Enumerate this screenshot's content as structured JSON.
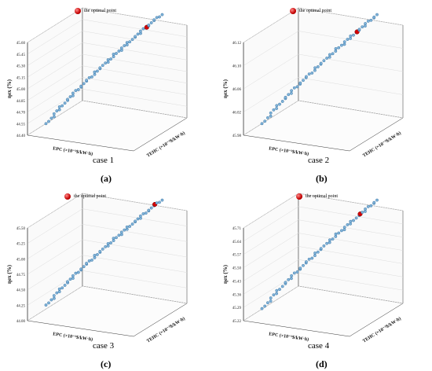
{
  "legend_label": "the optimal point",
  "colors": {
    "point": "#7fb3d9",
    "point_edge": "#2f6a9a",
    "optimal": "#d40000",
    "grid": "#dddddd",
    "axis": "#333333"
  },
  "chart_data": [
    {
      "type": "scatter",
      "subfigure": "(a)",
      "case_label": "case 1",
      "zlabel": "ηex (%)",
      "xlabel": "EPC (×10⁻³$/kW·h)",
      "ylabel": "TEHC (×10⁻³$/kW·h)",
      "z_ticks": [
        "44.40",
        "44.55",
        "44.70",
        "44.85",
        "45.00",
        "45.15",
        "45.30",
        "45.45",
        "45.60"
      ],
      "zlim": [
        44.4,
        45.6
      ],
      "z_start": 44.44,
      "optimal_z": 45.45,
      "n_points": 60
    },
    {
      "type": "scatter",
      "subfigure": "(b)",
      "case_label": "case 2",
      "zlabel": "ηex (%)",
      "xlabel": "EPC (×10⁻³$/kW·h)",
      "ylabel": "TEHC (×10⁻³$/kW·h)",
      "z_ticks": [
        "45.98",
        "46.02",
        "46.06",
        "46.10",
        "46.12"
      ],
      "zlim": [
        45.97,
        46.12
      ],
      "z_start": 45.975,
      "optimal_z": 46.095,
      "n_points": 55
    },
    {
      "type": "scatter",
      "subfigure": "(c)",
      "case_label": "case 3",
      "zlabel": "ηex (%)",
      "xlabel": "EPC (×10⁻³$/kW·h)",
      "ylabel": "TEHC (×10⁻³$/kW·h)",
      "z_ticks": [
        "44.00",
        "44.25",
        "44.50",
        "44.75",
        "45.00",
        "45.25",
        "45.50"
      ],
      "zlim": [
        44.0,
        45.55
      ],
      "z_start": 44.12,
      "optimal_z": 45.48,
      "n_points": 60
    },
    {
      "type": "scatter",
      "subfigure": "(d)",
      "case_label": "case 4",
      "zlabel": "ηex (%)",
      "xlabel": "EPC (×10⁻³$/kW·h)",
      "ylabel": "TEHC (×10⁻³$/kW·h)",
      "z_ticks": [
        "45.22",
        "45.29",
        "45.36",
        "45.43",
        "45.50",
        "45.57",
        "45.64",
        "45.71"
      ],
      "zlim": [
        45.22,
        45.73
      ],
      "z_start": 45.24,
      "optimal_z": 45.66,
      "n_points": 55
    }
  ]
}
